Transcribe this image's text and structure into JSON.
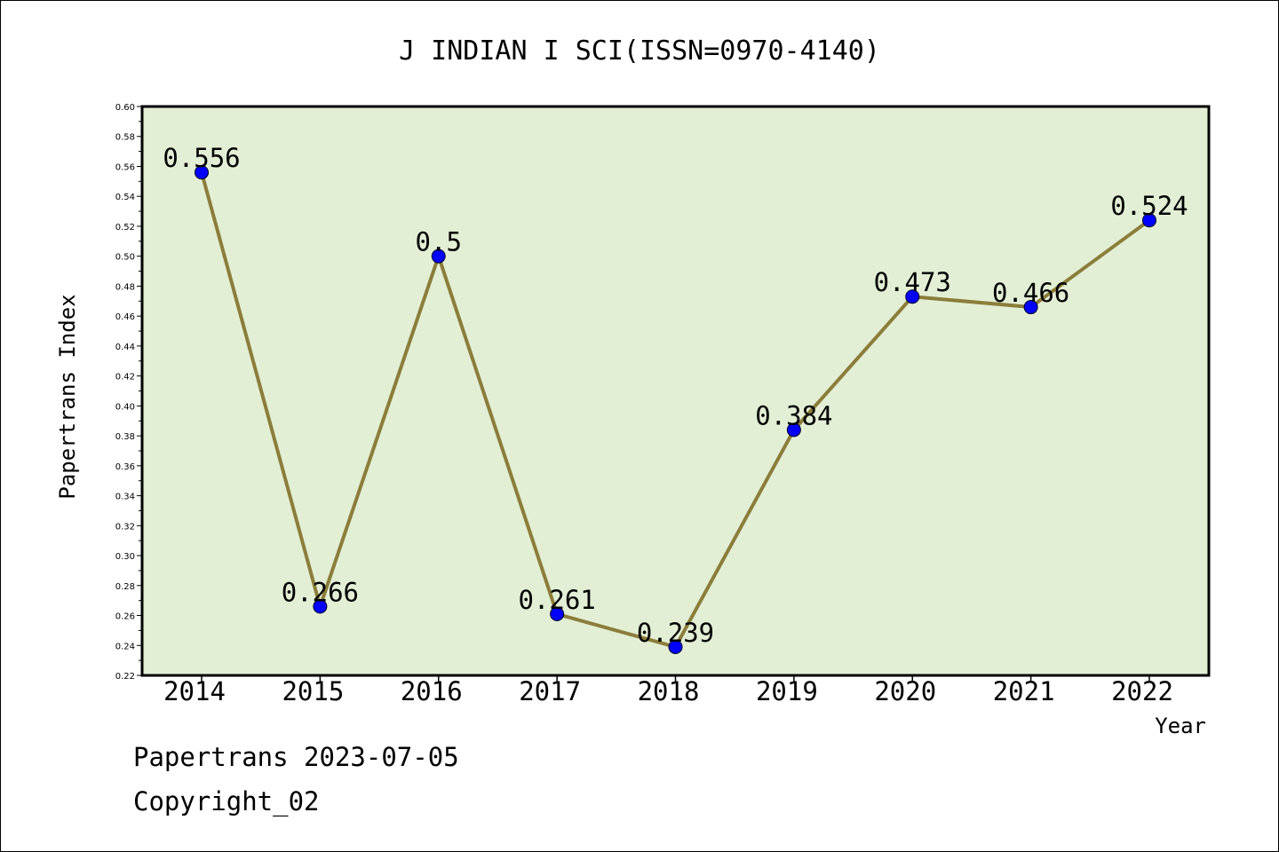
{
  "chart_data": {
    "type": "line",
    "title": "J INDIAN I SCI(ISSN=0970-4140)",
    "xlabel": "Year",
    "ylabel": "Papertrans Index",
    "categories": [
      "2014",
      "2015",
      "2016",
      "2017",
      "2018",
      "2019",
      "2020",
      "2021",
      "2022"
    ],
    "series": [
      {
        "values": [
          0.556,
          0.266,
          0.5,
          0.261,
          0.239,
          0.384,
          0.473,
          0.466,
          0.524
        ],
        "labels": [
          "0.556",
          "0.266",
          "0.5",
          "0.261",
          "0.239",
          "0.384",
          "0.473",
          "0.466",
          "0.524"
        ],
        "line_color": "#8b7d3a",
        "marker_color": "#0000ff"
      }
    ],
    "ylim": [
      0.22,
      0.6
    ],
    "yticks": [
      "0.22",
      "0.24",
      "0.26",
      "0.28",
      "0.30",
      "0.32",
      "0.34",
      "0.36",
      "0.38",
      "0.40",
      "0.42",
      "0.44",
      "0.46",
      "0.48",
      "0.50",
      "0.52",
      "0.54",
      "0.56",
      "0.58",
      "0.60"
    ],
    "plot_background": "#e2efd5",
    "grid": false,
    "legend": "none"
  },
  "footer": {
    "line1": "Papertrans 2023-07-05",
    "line2": "Copyright_02"
  }
}
